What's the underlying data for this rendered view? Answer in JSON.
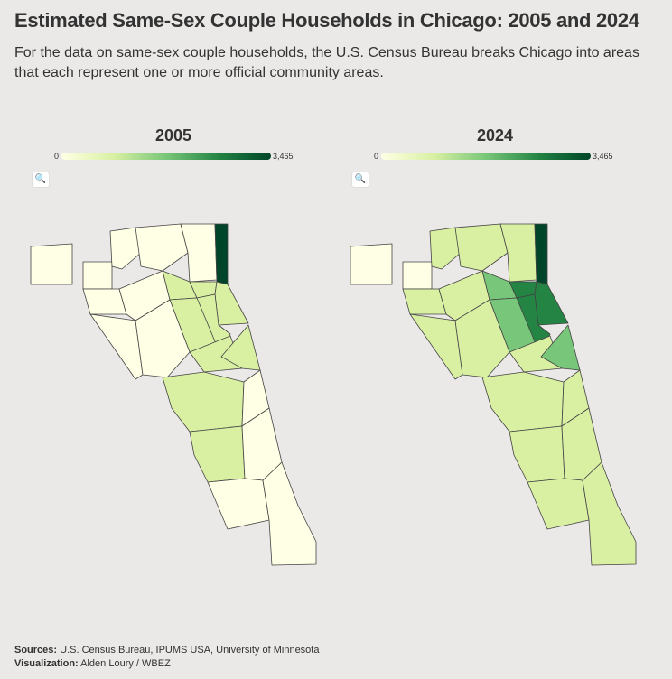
{
  "title": "Estimated Same-Sex Couple Households in Chicago: 2005 and 2024",
  "subtitle": "For the data on same-sex couple households, the U.S. Census Bureau breaks Chicago into areas that each represent one or more official community areas.",
  "panels": [
    {
      "year": "2005",
      "legend_min": "0",
      "legend_max": "3,465"
    },
    {
      "year": "2024",
      "legend_min": "0",
      "legend_max": "3,465"
    }
  ],
  "legend_colors": [
    "#ffffe5",
    "#d9f0a3",
    "#78c679",
    "#238443",
    "#004529"
  ],
  "search_icon_label": "🔍",
  "sources_label": "Sources:",
  "sources_text": "U.S. Census Bureau, IPUMS USA, University of Minnesota",
  "visualization_label": "Visualization:",
  "visualization_text": "Alden Loury / WBEZ"
}
